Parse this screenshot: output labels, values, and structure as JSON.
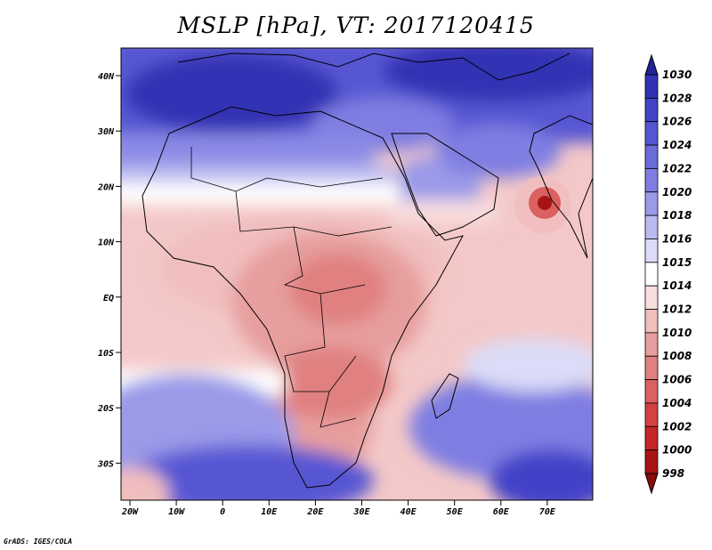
{
  "title": "MSLP [hPa], VT: 2017120415",
  "credit": "GrADS: IGES/COLA",
  "map": {
    "lat_ticks": [
      "40N",
      "30N",
      "20N",
      "10N",
      "EQ",
      "10S",
      "20S",
      "30S"
    ],
    "lon_ticks": [
      "20W",
      "10W",
      "0",
      "10E",
      "20E",
      "30E",
      "40E",
      "50E",
      "60E",
      "70E"
    ]
  },
  "colorbar": {
    "levels": [
      "1030",
      "1028",
      "1026",
      "1024",
      "1022",
      "1020",
      "1018",
      "1016",
      "1015",
      "1014",
      "1012",
      "1010",
      "1008",
      "1006",
      "1004",
      "1002",
      "1000",
      "998"
    ],
    "colors": [
      "#232399",
      "#3232b4",
      "#4343c8",
      "#5656d3",
      "#6a6ad9",
      "#7e7ee2",
      "#9a9ae9",
      "#babaf1",
      "#dcdcf8",
      "#ffffff",
      "#f8dede",
      "#f1bebe",
      "#e79e9e",
      "#e08080",
      "#db6060",
      "#d24242",
      "#c42828",
      "#a81414",
      "#8b0b0b"
    ]
  }
}
